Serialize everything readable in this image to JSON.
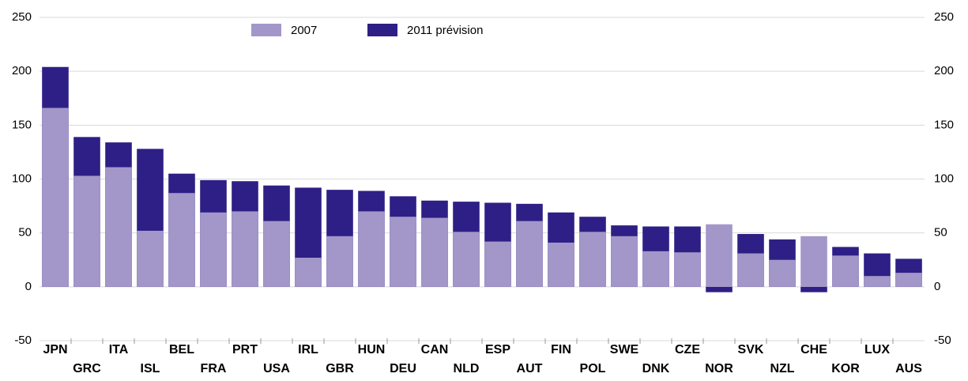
{
  "chart_data": {
    "type": "bar",
    "categories": [
      "JPN",
      "GRC",
      "ITA",
      "ISL",
      "BEL",
      "FRA",
      "PRT",
      "USA",
      "IRL",
      "GBR",
      "HUN",
      "DEU",
      "CAN",
      "NLD",
      "ESP",
      "AUT",
      "FIN",
      "POL",
      "SWE",
      "DNK",
      "CZE",
      "NOR",
      "SVK",
      "NZL",
      "CHE",
      "KOR",
      "LUX",
      "AUS"
    ],
    "series": [
      {
        "name": "2011 prévision",
        "color": "#2e1f86",
        "values": [
          204,
          139,
          134,
          128,
          105,
          99,
          98,
          94,
          92,
          90,
          89,
          84,
          80,
          79,
          78,
          77,
          69,
          65,
          57,
          56,
          56,
          -5,
          49,
          44,
          -5,
          37,
          31,
          26
        ]
      },
      {
        "name": "2007",
        "color": "#a397c9",
        "values": [
          166,
          103,
          111,
          52,
          87,
          69,
          70,
          61,
          27,
          47,
          70,
          65,
          64,
          51,
          42,
          61,
          41,
          51,
          47,
          33,
          32,
          58,
          31,
          25,
          47,
          29,
          10,
          13
        ]
      }
    ],
    "ylim": [
      -50,
      250
    ],
    "yticks": [
      -50,
      0,
      50,
      100,
      150,
      200,
      250
    ],
    "y2lim": [
      -50,
      250
    ],
    "y2ticks": [
      -50,
      0,
      50,
      100,
      150,
      200,
      250
    ],
    "grid": true
  }
}
